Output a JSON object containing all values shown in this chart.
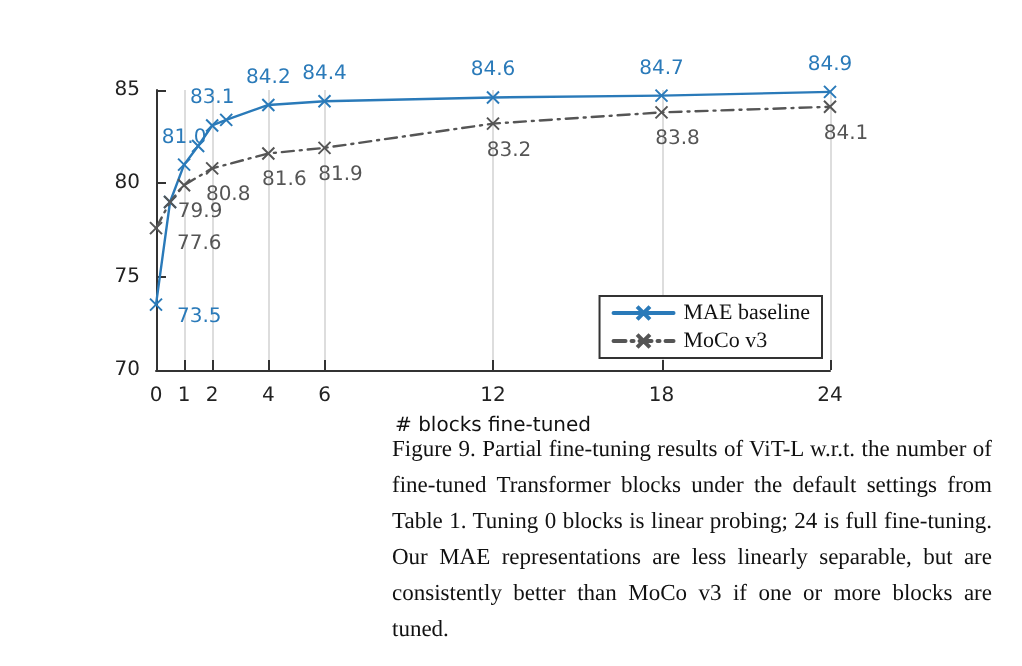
{
  "chart_data": {
    "type": "line",
    "xlabel": "# blocks fine-tuned",
    "xlim": [
      0,
      24
    ],
    "xticks": [
      0,
      1,
      2,
      4,
      6,
      12,
      18,
      24
    ],
    "ylim": [
      70,
      85
    ],
    "yticks": [
      70,
      75,
      80,
      85
    ],
    "grid": "x",
    "legend": "bottom right",
    "marker": "cross",
    "series": [
      {
        "name": "MAE baseline",
        "color": "#2a7ab9",
        "line_style": "solid",
        "x": [
          0,
          0.5,
          1,
          1.5,
          2,
          2.5,
          4,
          6,
          12,
          18,
          24
        ],
        "values": [
          73.5,
          79.0,
          81.0,
          82.0,
          83.1,
          83.4,
          84.2,
          84.4,
          84.6,
          84.7,
          84.9
        ],
        "value_labels": [
          "73.5",
          null,
          "81.0",
          null,
          "83.1",
          null,
          "84.2",
          "84.4",
          "84.6",
          "84.7",
          "84.9"
        ]
      },
      {
        "name": "MoCo v3",
        "color": "#555555",
        "line_style": "dashed",
        "x": [
          0,
          0.5,
          1,
          2,
          4,
          6,
          12,
          18,
          24
        ],
        "values": [
          77.6,
          79.0,
          79.9,
          80.8,
          81.6,
          81.9,
          83.2,
          83.8,
          84.1
        ],
        "value_labels": [
          "77.6",
          null,
          "79.9",
          "80.8",
          "81.6",
          "81.9",
          "83.2",
          "83.8",
          "84.1"
        ]
      }
    ],
    "annotations": [
      "Figure 9. Partial fine-tuning results of ViT-L w.r.t. the number of fine-tuned Transformer blocks under the default settings from Table 1. Tuning 0 blocks is linear probing; 24 is full fine-tuning. Our MAE representations are less linearly separable, but are consistently better than MoCo v3 if one or more blocks are tuned."
    ]
  }
}
